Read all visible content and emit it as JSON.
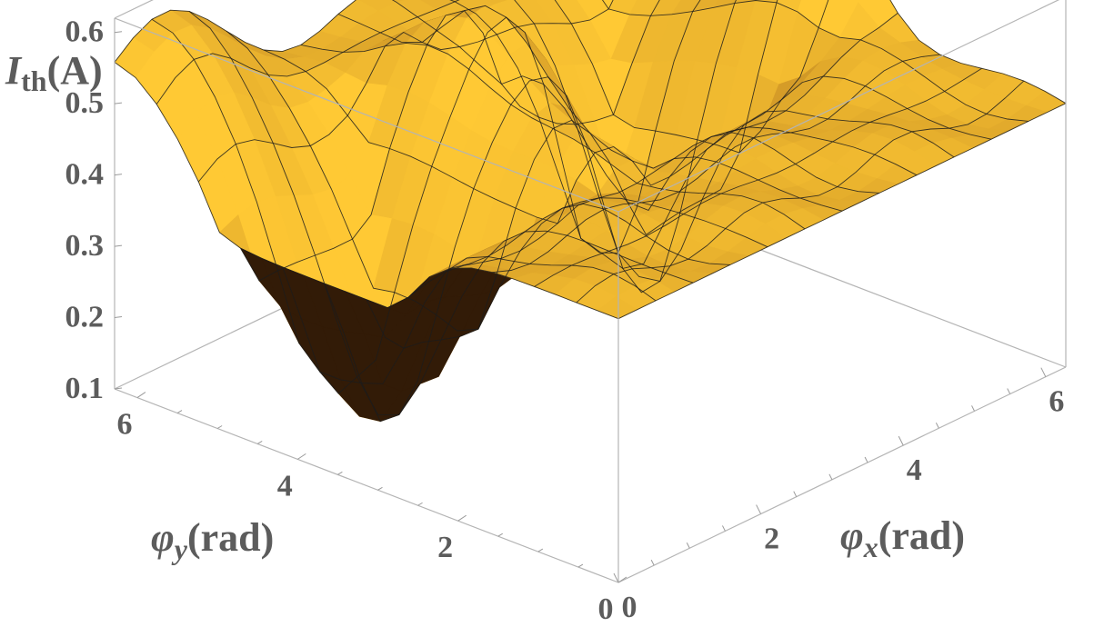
{
  "chart_data": {
    "type": "surface3d",
    "title": "",
    "zlabel": {
      "main": "I",
      "sub": "th",
      "unit": "(A)"
    },
    "xlabel": {
      "main": "φ",
      "sub": "x",
      "unit": "(rad)"
    },
    "ylabel": {
      "main": "φ",
      "sub": "y",
      "unit": "(rad)"
    },
    "x_range": [
      0,
      6.283
    ],
    "y_range": [
      0,
      6.283
    ],
    "z_range": [
      0.1,
      0.62
    ],
    "x_ticks": [
      {
        "value": 0,
        "label": "0"
      },
      {
        "value": 2,
        "label": "2"
      },
      {
        "value": 4,
        "label": "4"
      },
      {
        "value": 6,
        "label": "6"
      }
    ],
    "y_ticks": [
      {
        "value": 0,
        "label": "0"
      },
      {
        "value": 2,
        "label": "2"
      },
      {
        "value": 4,
        "label": "4"
      },
      {
        "value": 6,
        "label": "6"
      }
    ],
    "z_ticks": [
      {
        "value": 0.1,
        "label": "0.1"
      },
      {
        "value": 0.2,
        "label": "0.2"
      },
      {
        "value": 0.3,
        "label": "0.3"
      },
      {
        "value": 0.4,
        "label": "0.4"
      },
      {
        "value": 0.5,
        "label": "0.5"
      },
      {
        "value": 0.6,
        "label": "0.6"
      }
    ],
    "surface": {
      "resolution": 24,
      "min_value": 0.11,
      "max_value": 0.61,
      "valley_lines_x": [
        1.0,
        4.5
      ],
      "valley_lines_y": [
        3.85
      ],
      "peak_points": [
        {
          "x": 0.6,
          "y": 6.283,
          "z": 0.5
        },
        {
          "x": 3.3,
          "y": 4.4,
          "z": 0.59
        },
        {
          "x": 6.283,
          "y": 3.0,
          "z": 0.58
        }
      ]
    },
    "colors": {
      "surface_light": "#ffc934",
      "surface_dark": "#8a4e12",
      "underside": "#3a1f08",
      "box": "#b4b4b4",
      "text": "#5c5c5c"
    }
  }
}
